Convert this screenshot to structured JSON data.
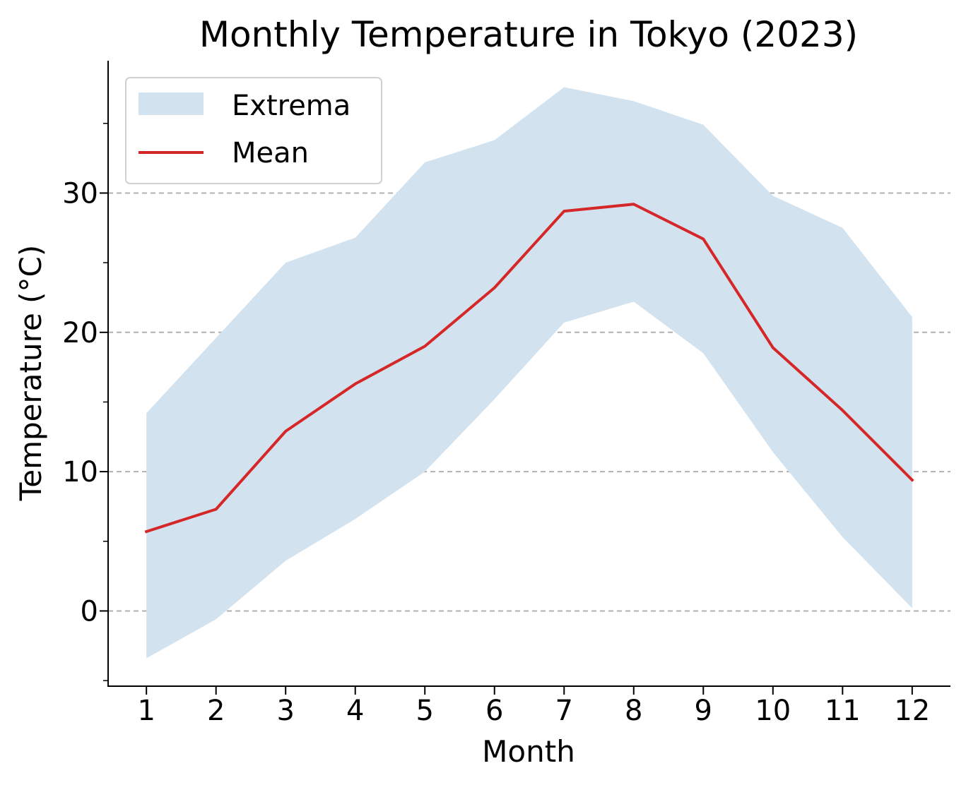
{
  "chart_data": {
    "type": "line",
    "title": "Monthly Temperature in Tokyo (2023)",
    "xlabel": "Month",
    "ylabel": "Temperature (°C)",
    "x": [
      1,
      2,
      3,
      4,
      5,
      6,
      7,
      8,
      9,
      10,
      11,
      12
    ],
    "x_tick_labels": [
      "1",
      "2",
      "3",
      "4",
      "5",
      "6",
      "7",
      "8",
      "9",
      "10",
      "11",
      "12"
    ],
    "y_ticks": [
      0,
      10,
      20,
      30
    ],
    "y_tick_labels": [
      "0",
      "10",
      "20",
      "30"
    ],
    "xlim": [
      0.45,
      12.55
    ],
    "ylim": [
      -5.4,
      39.5
    ],
    "grid": "y-dashed",
    "legend_position": "top-left",
    "series": [
      {
        "name": "Extrema",
        "kind": "band",
        "color": "#d2e3ef",
        "upper": [
          14.2,
          19.6,
          25.0,
          26.8,
          32.2,
          33.8,
          37.6,
          36.6,
          34.9,
          29.8,
          27.5,
          21.1
        ],
        "lower": [
          -3.4,
          -0.6,
          3.6,
          6.6,
          10.0,
          15.2,
          20.7,
          22.2,
          18.5,
          11.4,
          5.3,
          0.2
        ]
      },
      {
        "name": "Mean",
        "kind": "line",
        "color": "#d62728",
        "values": [
          5.7,
          7.3,
          12.9,
          16.3,
          19.0,
          23.2,
          28.7,
          29.2,
          26.7,
          18.9,
          14.4,
          9.4
        ]
      }
    ]
  }
}
